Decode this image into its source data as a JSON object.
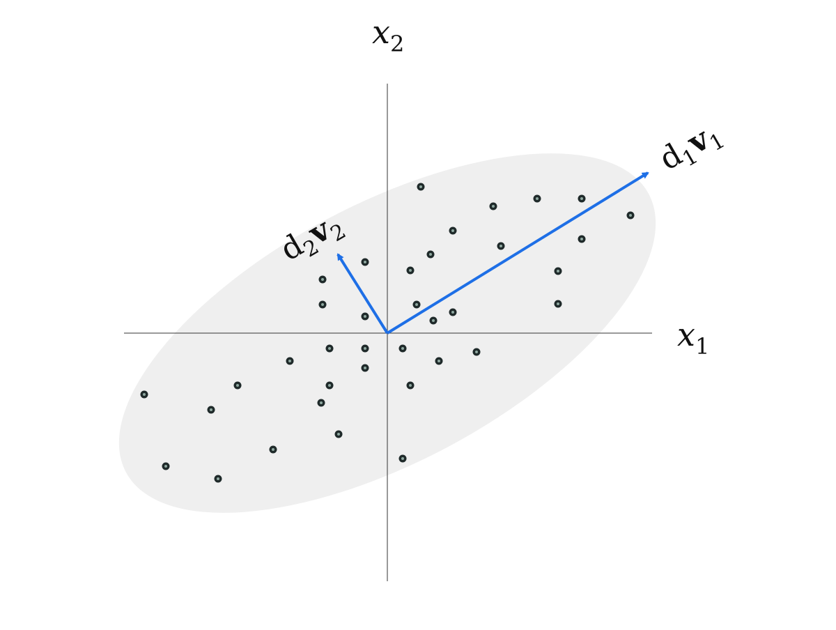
{
  "diagram": {
    "axes": {
      "x_label": {
        "base": "x",
        "sub": "1"
      },
      "y_label": {
        "base": "x",
        "sub": "2"
      }
    },
    "vectors": [
      {
        "id": "v1",
        "label_parts": [
          {
            "t": "d",
            "s": "normal"
          },
          {
            "t": "1",
            "s": "sub"
          },
          {
            "t": "v",
            "s": "bold"
          },
          {
            "t": "1",
            "s": "sub"
          }
        ]
      },
      {
        "id": "v2",
        "label_parts": [
          {
            "t": "d",
            "s": "normal"
          },
          {
            "t": "2",
            "s": "sub"
          },
          {
            "t": "v",
            "s": "bold"
          },
          {
            "t": "2",
            "s": "sub"
          }
        ]
      }
    ],
    "colors": {
      "axis": "#333333",
      "ellipse": "#efefef",
      "vector": "#1e6fe6",
      "point_outer": "#1f2a2a",
      "point_inner": "#8fa8a0"
    }
  }
}
